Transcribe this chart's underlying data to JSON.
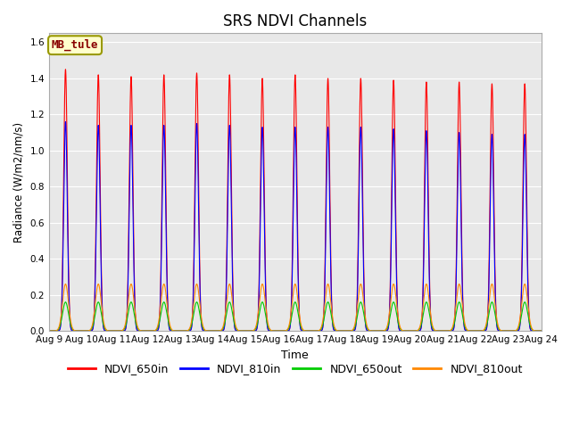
{
  "title": "SRS NDVI Channels",
  "xlabel": "Time",
  "ylabel": "Radiance (W/m2/nm/s)",
  "ylim": [
    0,
    1.65
  ],
  "yticks": [
    0.0,
    0.2,
    0.4,
    0.6,
    0.8,
    1.0,
    1.2,
    1.4,
    1.6
  ],
  "background_color": "#d8d8d8",
  "plot_bg": "#e8e8e8",
  "annotation_text": "MB_tule",
  "annotation_color": "#880000",
  "annotation_bg": "#ffffcc",
  "annotation_border": "#999900",
  "series_order": [
    "NDVI_650in",
    "NDVI_810in",
    "NDVI_650out",
    "NDVI_810out"
  ],
  "series": {
    "NDVI_650in": {
      "color": "#ff0000",
      "peak_heights": [
        1.45,
        1.42,
        1.41,
        1.42,
        1.43,
        1.42,
        1.4,
        1.42,
        1.4,
        1.4,
        1.39,
        1.38,
        1.38,
        1.37,
        1.37
      ]
    },
    "NDVI_810in": {
      "color": "#0000ff",
      "peak_heights": [
        1.16,
        1.14,
        1.14,
        1.14,
        1.15,
        1.14,
        1.13,
        1.13,
        1.13,
        1.13,
        1.12,
        1.11,
        1.1,
        1.09,
        1.09
      ]
    },
    "NDVI_650out": {
      "color": "#00cc00",
      "peak_heights": [
        0.16,
        0.16,
        0.16,
        0.16,
        0.16,
        0.16,
        0.16,
        0.16,
        0.16,
        0.16,
        0.16,
        0.16,
        0.16,
        0.16,
        0.16
      ]
    },
    "NDVI_810out": {
      "color": "#ff8800",
      "peak_heights": [
        0.26,
        0.26,
        0.26,
        0.26,
        0.26,
        0.26,
        0.26,
        0.26,
        0.26,
        0.26,
        0.26,
        0.26,
        0.26,
        0.26,
        0.26
      ]
    }
  },
  "n_days": 15,
  "start_day": 9,
  "sigma_in": 0.055,
  "sigma_out": 0.09,
  "legend_entries": [
    "NDVI_650in",
    "NDVI_810in",
    "NDVI_650out",
    "NDVI_810out"
  ],
  "legend_colors": [
    "#ff0000",
    "#0000ff",
    "#00cc00",
    "#ff8800"
  ]
}
